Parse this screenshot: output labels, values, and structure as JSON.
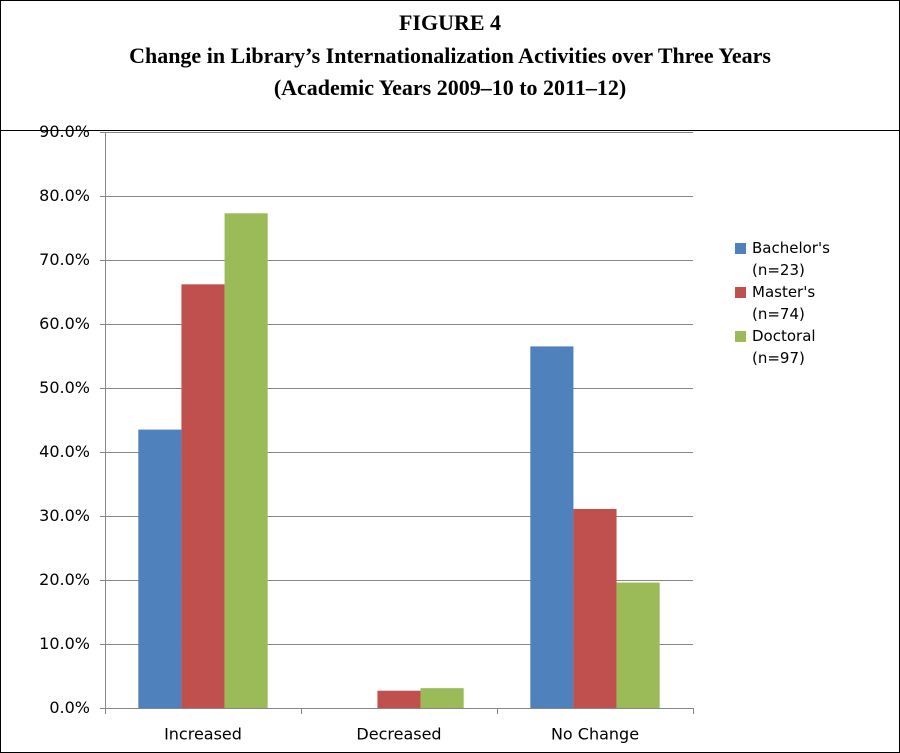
{
  "chart_data": {
    "type": "bar",
    "title": [
      "FIGURE 4",
      "Change in Library’s Internationalization Activities over Three Years",
      "(Academic Years 2009–10 to 2011–12)"
    ],
    "categories": [
      "Increased",
      "Decreased",
      "No Change"
    ],
    "series": [
      {
        "name": "Bachelor's (n=23)",
        "color": "#4f81bd",
        "values": [
          43.5,
          0,
          56.5
        ]
      },
      {
        "name": "Master's (n=74)",
        "color": "#c0504d",
        "values": [
          66.2,
          2.7,
          31.1
        ]
      },
      {
        "name": "Doctoral (n=97)",
        "color": "#9bbb59",
        "values": [
          77.3,
          3.1,
          19.6
        ]
      }
    ],
    "ylim": [
      0,
      90
    ],
    "yticks": [
      {
        "value": 0,
        "label": "0.0%"
      },
      {
        "value": 10,
        "label": "10.0%"
      },
      {
        "value": 20,
        "label": "20.0%"
      },
      {
        "value": 30,
        "label": "30.0%"
      },
      {
        "value": 40,
        "label": "40.0%"
      },
      {
        "value": 50,
        "label": "50.0%"
      },
      {
        "value": 60,
        "label": "60.0%"
      },
      {
        "value": 70,
        "label": "70.0%"
      },
      {
        "value": 80,
        "label": "80.0%"
      },
      {
        "value": 90,
        "label": "90.0%"
      }
    ],
    "grid": true,
    "legend": "right"
  }
}
